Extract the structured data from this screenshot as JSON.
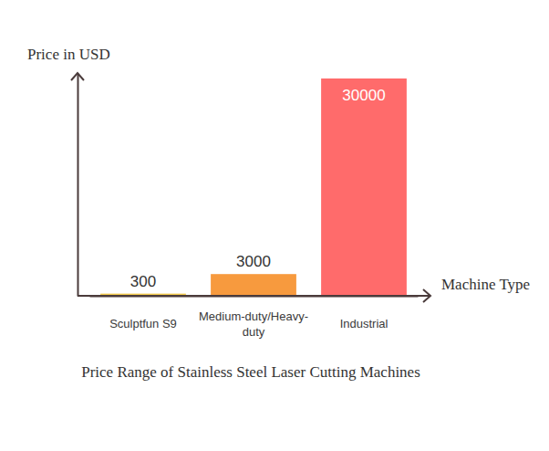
{
  "chart_data": {
    "type": "bar",
    "title": "Price Range of Stainless Steel Laser Cutting Machines",
    "x_label": "Machine Type",
    "y_label": "Price in USD",
    "categories": [
      "Sculptfun S9",
      "Medium-duty/Heavy-duty",
      "Industrial"
    ],
    "values": [
      300,
      3000,
      30000
    ],
    "colors": [
      "#f2c94c",
      "#f79a3e",
      "#ff6b6b"
    ],
    "ylim": [
      0,
      30750
    ],
    "data_labels": true,
    "tick_labels": "x",
    "grid": false
  }
}
